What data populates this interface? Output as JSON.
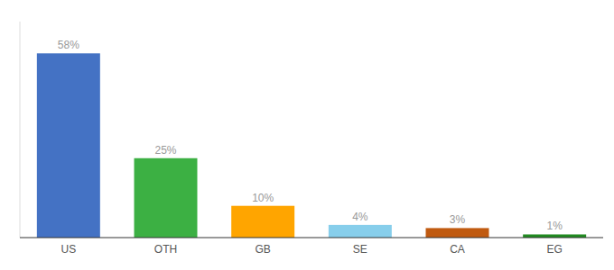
{
  "chart_data": {
    "type": "bar",
    "categories": [
      "US",
      "OTH",
      "GB",
      "SE",
      "CA",
      "EG"
    ],
    "values": [
      58,
      25,
      10,
      4,
      3,
      1
    ],
    "value_labels": [
      "58%",
      "25%",
      "10%",
      "4%",
      "3%",
      "1%"
    ],
    "colors": [
      "#4472C4",
      "#3CB043",
      "#FFA500",
      "#87CEEB",
      "#C05A10",
      "#228B22"
    ],
    "ylim": [
      0,
      68
    ],
    "data_labels": true,
    "tick_labels": "x",
    "grid": false
  }
}
